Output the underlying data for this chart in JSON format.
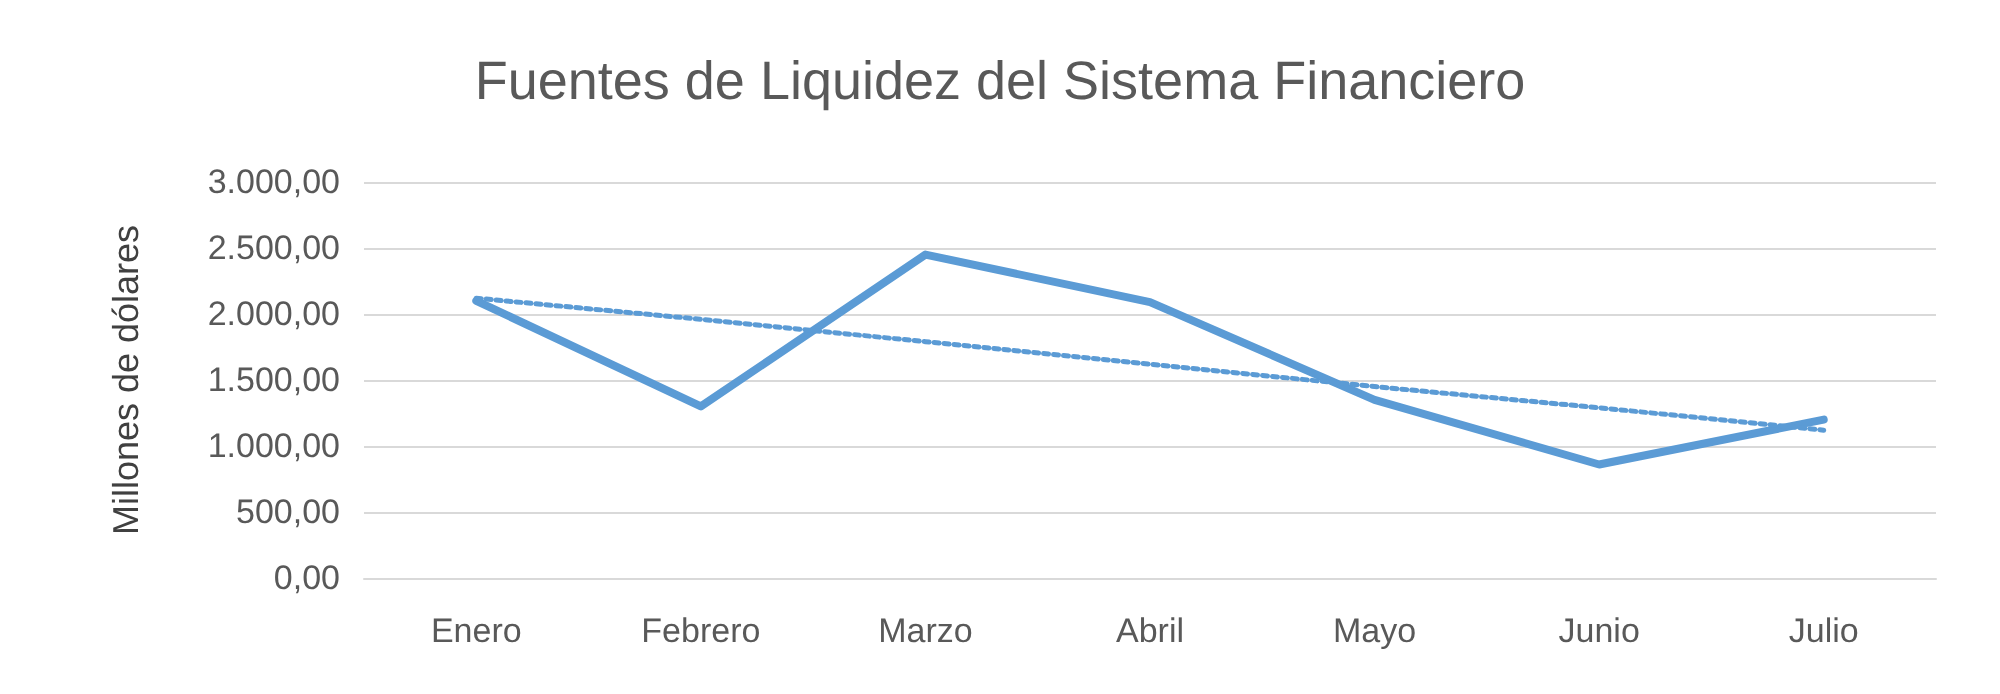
{
  "chart_data": {
    "type": "line",
    "title": "Fuentes de Liquidez del Sistema Financiero",
    "ylabel": "Millones de dólares",
    "categories": [
      "Enero",
      "Febrero",
      "Marzo",
      "Abril",
      "Mayo",
      "Junio",
      "Julio"
    ],
    "series": [
      {
        "color": "#5b9bd5",
        "values": [
          2100,
          1300,
          2450,
          2090,
          1350,
          860,
          1200
        ],
        "line_style": "solid"
      },
      {
        "color": "#5b9bd5",
        "values": [
          2120,
          1960,
          1790,
          1620,
          1450,
          1290,
          1120
        ],
        "line_style": "dotted"
      }
    ],
    "ylim": [
      0,
      3000
    ],
    "yticks": [
      {
        "value": 0,
        "label": "0,00"
      },
      {
        "value": 500,
        "label": "500,00"
      },
      {
        "value": 1000,
        "label": "1.000,00"
      },
      {
        "value": 1500,
        "label": "1.500,00"
      },
      {
        "value": 2000,
        "label": "2.000,00"
      },
      {
        "value": 2500,
        "label": "2.500,00"
      },
      {
        "value": 3000,
        "label": "3.000,00"
      }
    ],
    "grid": "y",
    "marker": "none"
  }
}
